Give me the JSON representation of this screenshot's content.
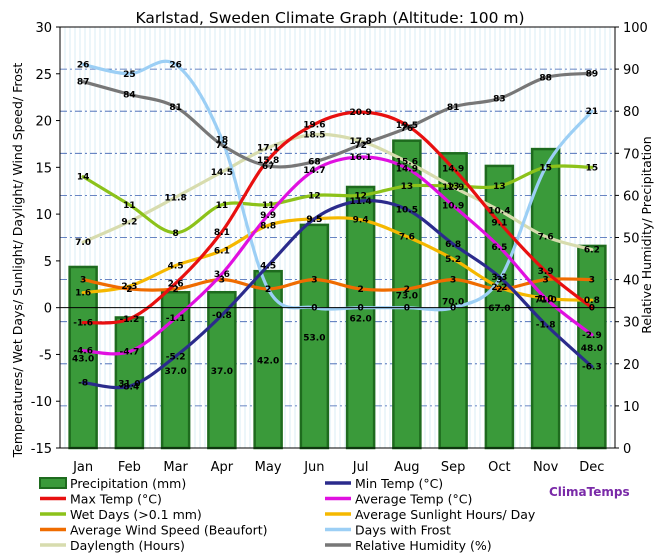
{
  "chart_data": {
    "type": "bar",
    "title": "Karlstad, Sweden Climate Graph (Altitude: 100 m)",
    "ylabel_left": "Temperatures/ Wet Days/ Sunlight/ Daylight/ Wind Speed/ Frost",
    "ylabel_right": "Relative Humidity/ Precipitation",
    "ylim_left": [
      -15,
      30
    ],
    "ylim_right": [
      0,
      100
    ],
    "left_ticks": [
      -15,
      -10,
      -5,
      0,
      5,
      10,
      15,
      20,
      25,
      30
    ],
    "right_ticks": [
      0,
      10,
      20,
      30,
      40,
      50,
      60,
      70,
      80,
      90,
      100
    ],
    "categories": [
      "Jan",
      "Feb",
      "Mar",
      "Apr",
      "May",
      "Jun",
      "Jul",
      "Aug",
      "Sep",
      "Oct",
      "Nov",
      "Dec"
    ],
    "bar_series": {
      "name": "Precipitation (mm)",
      "axis": "right",
      "values": [
        43.0,
        31.0,
        37.0,
        37.0,
        42.0,
        53.0,
        62.0,
        73.0,
        70.0,
        67.0,
        71.0,
        48.0
      ],
      "labels": [
        "43.0",
        "31.0",
        "37.0",
        "37.0",
        "42.0",
        "53.0",
        "62.0",
        "73.0",
        "70.0",
        "67.0",
        "71.0",
        "48.0"
      ],
      "color": "#2e8b2e"
    },
    "series": [
      {
        "name": "Min Temp (°C)",
        "color": "#2b2b8c",
        "axis": "left",
        "values": [
          -8,
          -8.4,
          -5.2,
          -0.8,
          4.5,
          9.5,
          11.4,
          10.5,
          6.8,
          3.3,
          -1.8,
          -6.3
        ],
        "labels": [
          "-8",
          "-8.4",
          "-5.2",
          "-0.8",
          "4.5",
          "9.5",
          "11.4",
          "10.5",
          "6.8",
          "3.3",
          "-1.8",
          "-6.3"
        ]
      },
      {
        "name": "Max Temp (°C)",
        "color": "#e81010",
        "axis": "left",
        "values": [
          -1.6,
          -1.2,
          2.6,
          8.1,
          15.8,
          19.6,
          20.9,
          19.5,
          14.9,
          9.1,
          3.9,
          0
        ],
        "labels": [
          "-1.6",
          "-1.2",
          "2.6",
          "8.1",
          "15.8",
          "19.6",
          "20.9",
          "19.5",
          "14.9",
          "9.1",
          "3.9",
          "0"
        ]
      },
      {
        "name": "Average Temp (°C)",
        "color": "#e010e0",
        "axis": "left",
        "values": [
          -4.6,
          -4.7,
          -1.1,
          3.6,
          9.9,
          14.7,
          16.1,
          14.9,
          10.9,
          6.5,
          1.0,
          -2.9
        ],
        "labels": [
          "-4.6",
          "-4.7",
          "-1.1",
          "3.6",
          "9.9",
          "14.7",
          "16.1",
          "14.9",
          "10.9",
          "6.5",
          "1.0",
          "-2.9"
        ]
      },
      {
        "name": "Wet Days (>0.1 mm)",
        "color": "#8cc21a",
        "axis": "left",
        "values": [
          14,
          11,
          8,
          11,
          11,
          12,
          12,
          13,
          13,
          13,
          15,
          15
        ],
        "labels": [
          "14",
          "11",
          "8",
          "11",
          "11",
          "12",
          "12",
          "13",
          "13",
          "13",
          "15",
          "15"
        ]
      },
      {
        "name": "Average Sunlight Hours/ Day",
        "color": "#f5b800",
        "axis": "left",
        "values": [
          1.6,
          2.3,
          4.5,
          6.1,
          8.8,
          9.5,
          9.4,
          7.6,
          5.2,
          2.2,
          1.0,
          0.8
        ],
        "labels": [
          "1.6",
          "2.3",
          "4.5",
          "6.1",
          "8.8",
          "9.5",
          "9.4",
          "7.6",
          "5.2",
          "2.2",
          "1.0",
          "0.8"
        ]
      },
      {
        "name": "Average Wind Speed (Beaufort)",
        "color": "#ef6c00",
        "axis": "left",
        "values": [
          3,
          2,
          2,
          3,
          2,
          3,
          2,
          2,
          3,
          2,
          3,
          3
        ],
        "labels": [
          "3",
          "2",
          "2",
          "3",
          "2",
          "3",
          "2",
          "2",
          "3",
          "2",
          "3",
          "3"
        ]
      },
      {
        "name": "Days with Frost",
        "color": "#9ccff5",
        "axis": "left",
        "values": [
          26,
          25,
          26,
          18,
          2,
          0,
          0,
          0,
          0,
          3,
          15,
          21
        ],
        "labels": [
          "26",
          "25",
          "26",
          "18",
          "2",
          "0",
          "0",
          "0",
          "0",
          "3",
          "15",
          "21"
        ]
      },
      {
        "name": "Daylength (Hours)",
        "color": "#d7dcae",
        "axis": "left",
        "values": [
          7.0,
          9.2,
          11.8,
          14.5,
          17.1,
          18.5,
          17.8,
          15.6,
          12.9,
          10.4,
          7.6,
          6.2
        ],
        "labels": [
          "7.0",
          "9.2",
          "11.8",
          "14.5",
          "17.1",
          "18.5",
          "17.8",
          "15.6",
          "12.9",
          "10.4",
          "7.6",
          "6.2"
        ]
      },
      {
        "name": "Relative Humidity (%)",
        "color": "#777777",
        "axis": "right",
        "values": [
          87,
          84,
          81,
          72,
          67,
          68,
          72,
          76,
          81,
          83,
          88,
          89
        ],
        "labels": [
          "87",
          "84",
          "81",
          "72",
          "67",
          "68",
          "72",
          "76",
          "81",
          "83",
          "88",
          "89"
        ]
      }
    ],
    "legend_position": "bottom",
    "grid": true
  },
  "branding": "ClimaTemps"
}
